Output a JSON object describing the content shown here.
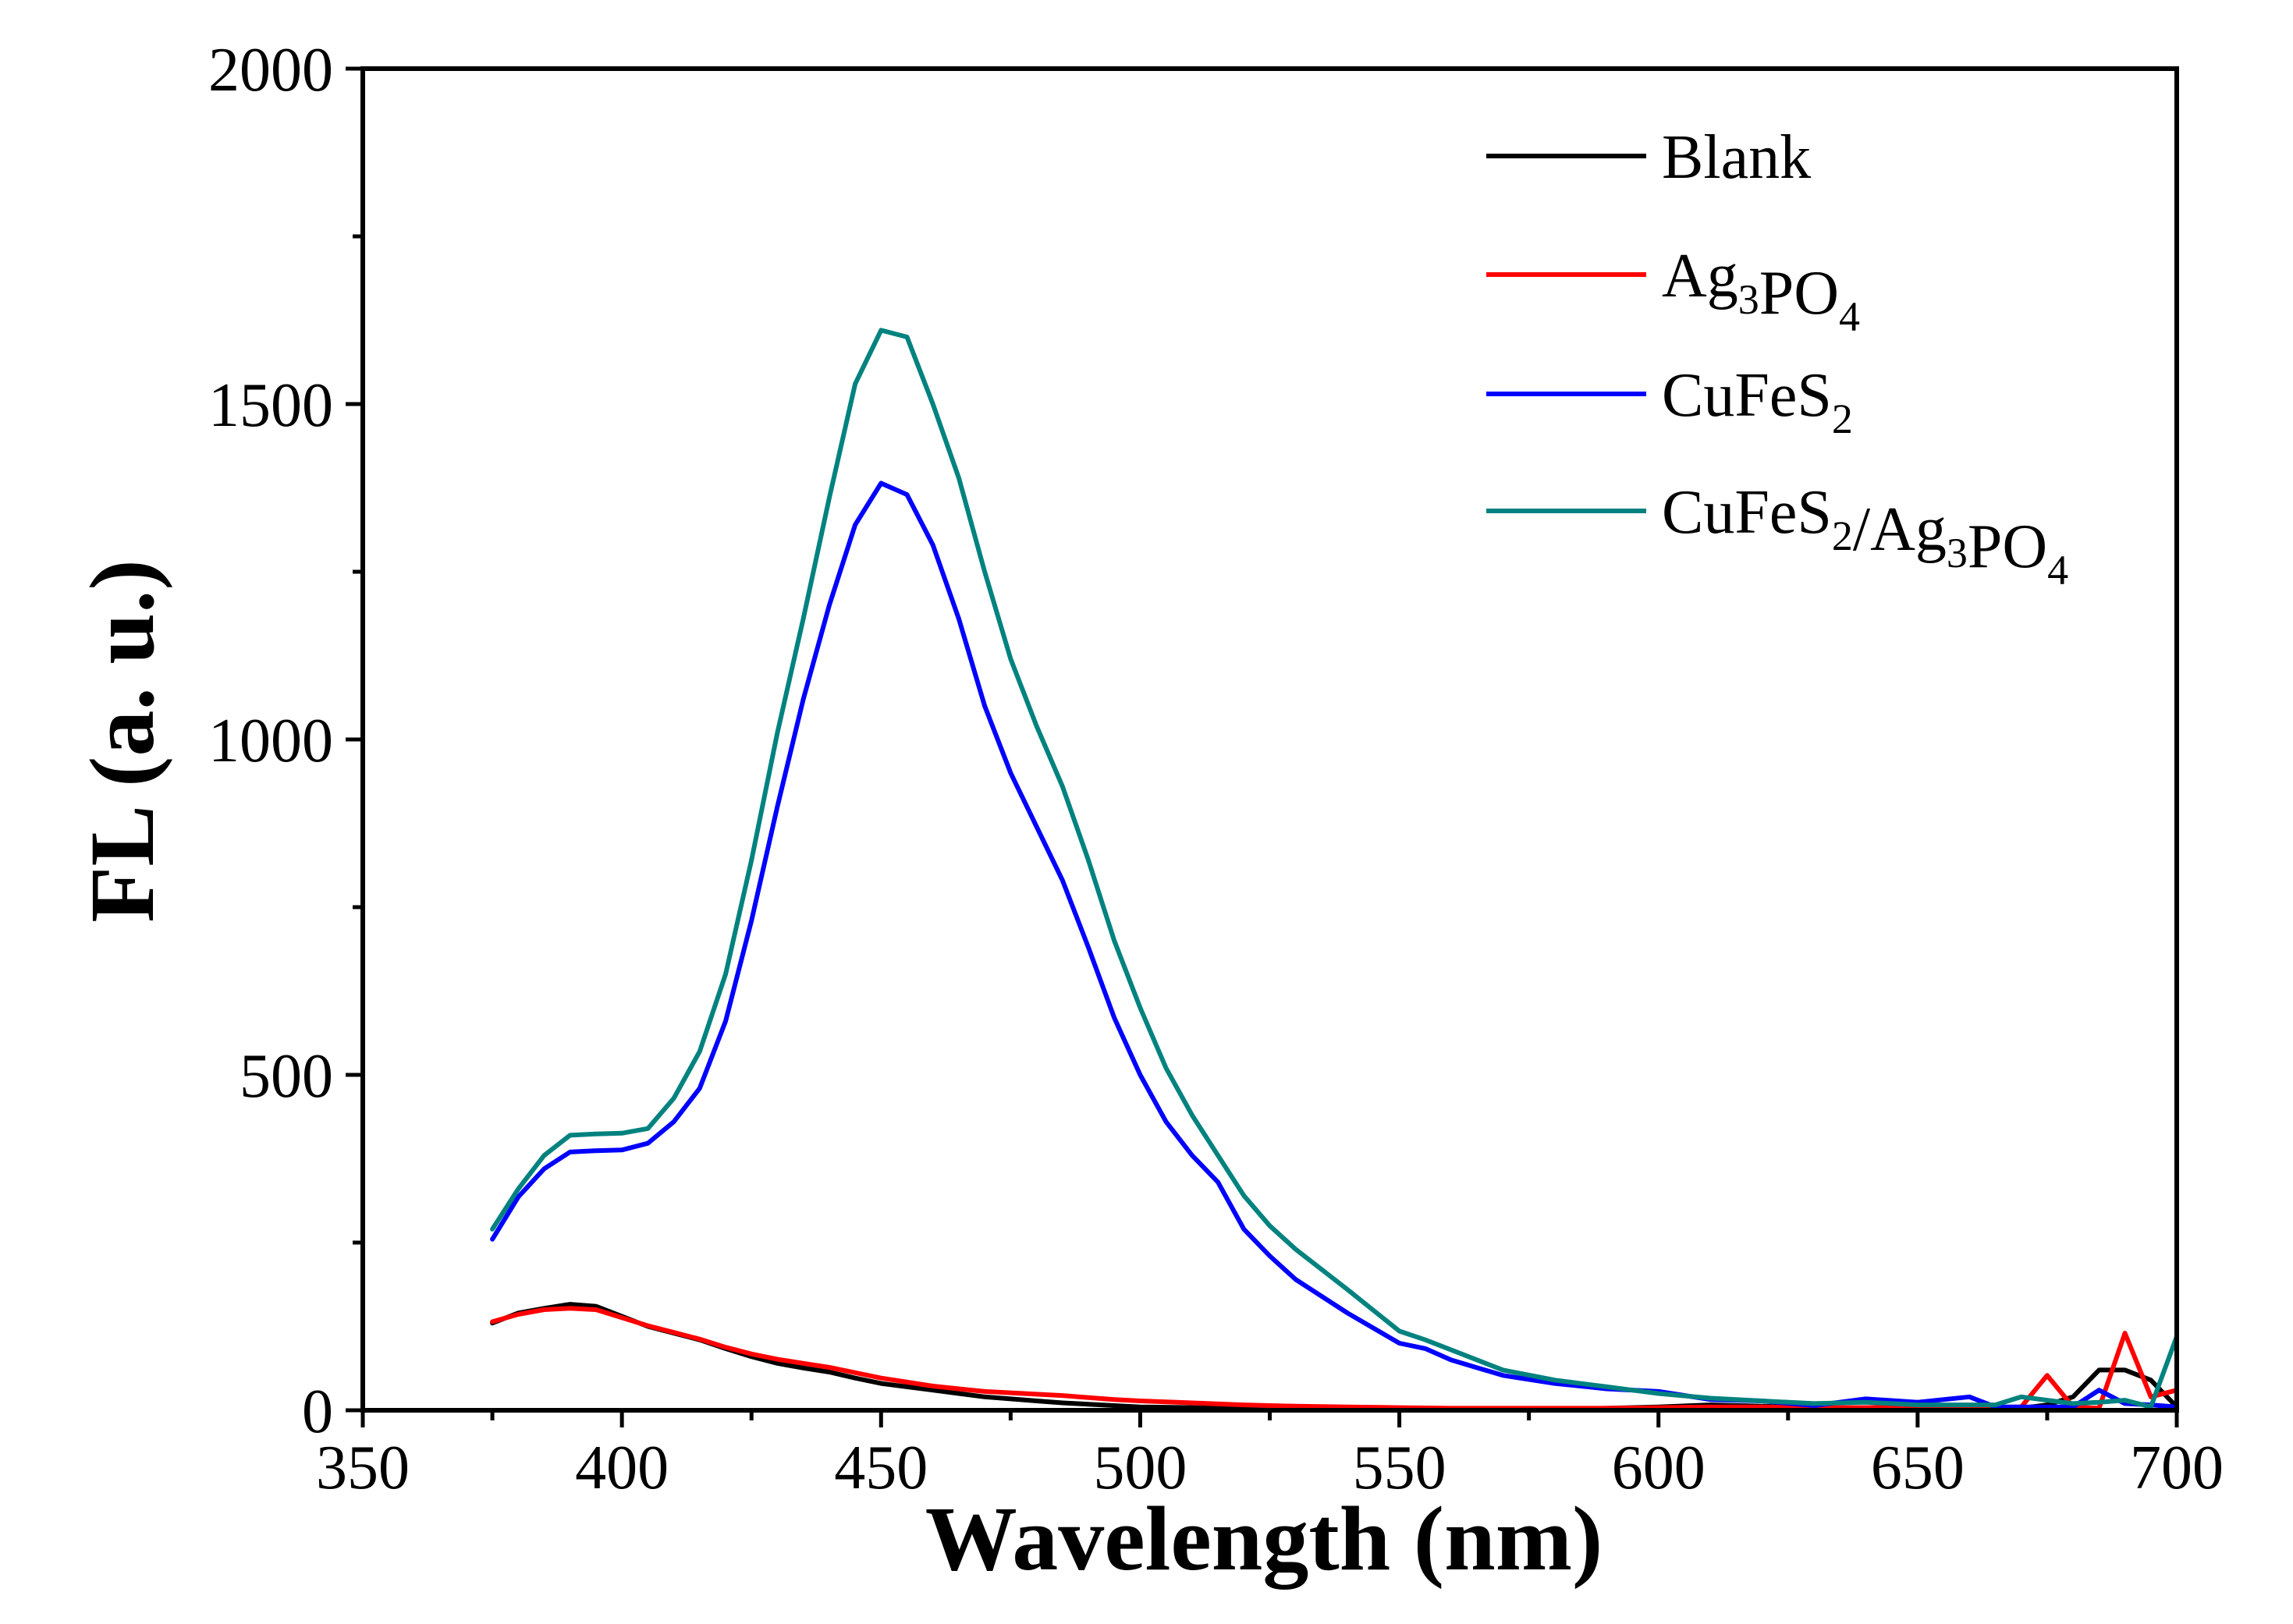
{
  "chart_data": {
    "type": "line",
    "title": "",
    "xlabel": "Wavelength (nm)",
    "ylabel": "FL (a. u.)",
    "xlim": [
      350,
      700
    ],
    "ylim": [
      0,
      2000
    ],
    "xticks": [
      350,
      400,
      450,
      500,
      550,
      600,
      650,
      700
    ],
    "yticks": [
      0,
      500,
      1000,
      1500,
      2000
    ],
    "legend_position": "top-right",
    "series": [
      {
        "name": "Blank",
        "color": "#000000",
        "legend_label": [
          {
            "t": "Blank",
            "sub": false
          }
        ],
        "x": [
          375,
          380,
          385,
          390,
          395,
          400,
          405,
          410,
          415,
          420,
          425,
          430,
          435,
          440,
          445,
          450,
          455,
          460,
          465,
          470,
          475,
          480,
          485,
          490,
          495,
          500,
          510,
          520,
          530,
          540,
          550,
          560,
          570,
          580,
          590,
          600,
          610,
          620,
          630,
          640,
          650,
          660,
          670,
          675,
          680,
          685,
          690,
          695,
          700
        ],
        "values": [
          130,
          145,
          152,
          158,
          155,
          140,
          125,
          115,
          105,
          92,
          80,
          70,
          63,
          57,
          48,
          40,
          35,
          30,
          25,
          20,
          17,
          14,
          11,
          9,
          7,
          5,
          4,
          3,
          2,
          2,
          1,
          1,
          2,
          2,
          3,
          5,
          8,
          6,
          4,
          3,
          3,
          4,
          3,
          8,
          20,
          60,
          60,
          45,
          5
        ]
      },
      {
        "name": "Ag3PO4",
        "color": "#ff0000",
        "legend_label": [
          {
            "t": "Ag",
            "sub": false
          },
          {
            "t": "3",
            "sub": true
          },
          {
            "t": "PO",
            "sub": false
          },
          {
            "t": "4",
            "sub": true
          }
        ],
        "x": [
          375,
          380,
          385,
          390,
          395,
          400,
          405,
          410,
          415,
          420,
          425,
          430,
          435,
          440,
          445,
          450,
          455,
          460,
          465,
          470,
          475,
          480,
          485,
          490,
          495,
          500,
          510,
          520,
          530,
          540,
          550,
          560,
          570,
          580,
          590,
          600,
          610,
          620,
          630,
          640,
          650,
          660,
          670,
          675,
          680,
          685,
          690,
          695,
          700
        ],
        "values": [
          132,
          143,
          150,
          152,
          150,
          138,
          126,
          116,
          106,
          94,
          84,
          76,
          70,
          64,
          56,
          48,
          42,
          36,
          32,
          28,
          26,
          24,
          22,
          19,
          16,
          14,
          11,
          8,
          6,
          5,
          4,
          3,
          3,
          3,
          3,
          4,
          5,
          5,
          4,
          4,
          5,
          4,
          5,
          52,
          5,
          3,
          115,
          20,
          30
        ]
      },
      {
        "name": "CuFeS2",
        "color": "#0000ff",
        "legend_label": [
          {
            "t": "CuFeS",
            "sub": false
          },
          {
            "t": "2",
            "sub": true
          }
        ],
        "x": [
          375,
          380,
          385,
          390,
          395,
          400,
          405,
          410,
          415,
          420,
          425,
          430,
          435,
          440,
          445,
          450,
          455,
          460,
          465,
          470,
          475,
          480,
          485,
          490,
          495,
          500,
          505,
          510,
          515,
          520,
          525,
          530,
          540,
          550,
          555,
          560,
          570,
          580,
          590,
          600,
          610,
          620,
          630,
          640,
          650,
          660,
          665,
          670,
          680,
          685,
          690,
          695,
          700
        ],
        "values": [
          255,
          318,
          360,
          385,
          387,
          388,
          398,
          430,
          480,
          580,
          730,
          900,
          1060,
          1200,
          1320,
          1382,
          1365,
          1290,
          1180,
          1050,
          950,
          870,
          790,
          690,
          585,
          500,
          430,
          380,
          340,
          270,
          230,
          195,
          145,
          100,
          92,
          75,
          52,
          40,
          32,
          28,
          16,
          14,
          7,
          17,
          12,
          20,
          5,
          5,
          5,
          30,
          10,
          8,
          5
        ]
      },
      {
        "name": "CuFeS2/Ag3PO4",
        "color": "#00827f",
        "legend_label": [
          {
            "t": "CuFeS",
            "sub": false
          },
          {
            "t": "2",
            "sub": true
          },
          {
            "t": "/Ag",
            "sub": false
          },
          {
            "t": "3",
            "sub": true
          },
          {
            "t": "PO",
            "sub": false
          },
          {
            "t": "4",
            "sub": true
          }
        ],
        "x": [
          375,
          380,
          385,
          390,
          395,
          400,
          405,
          410,
          415,
          420,
          425,
          430,
          435,
          440,
          445,
          450,
          455,
          460,
          465,
          470,
          475,
          480,
          485,
          490,
          495,
          500,
          505,
          510,
          515,
          520,
          525,
          530,
          540,
          550,
          555,
          560,
          570,
          580,
          590,
          600,
          610,
          620,
          630,
          640,
          650,
          660,
          665,
          670,
          680,
          685,
          690,
          695,
          700
        ],
        "values": [
          270,
          330,
          380,
          410,
          412,
          413,
          420,
          465,
          535,
          650,
          820,
          1010,
          1180,
          1360,
          1530,
          1610,
          1600,
          1500,
          1390,
          1250,
          1120,
          1020,
          930,
          820,
          700,
          600,
          510,
          440,
          380,
          320,
          275,
          240,
          180,
          118,
          105,
          90,
          60,
          45,
          35,
          25,
          18,
          14,
          10,
          12,
          8,
          8,
          8,
          20,
          10,
          12,
          15,
          5,
          110
        ]
      }
    ]
  }
}
